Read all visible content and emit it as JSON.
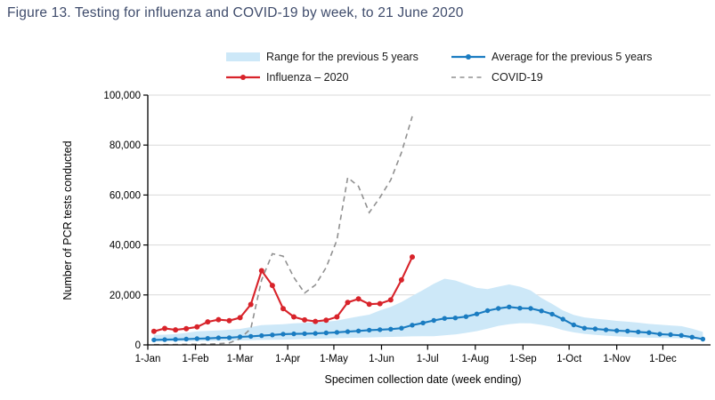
{
  "figure": {
    "title": "Figure 13. Testing for influenza and COVID-19 by week, to 21 June 2020"
  },
  "legend": {
    "range_label": "Range for the previous 5 years",
    "average_label": "Average for the previous 5 years",
    "influenza_label": "Influenza – 2020",
    "covid_label": "COVID-19"
  },
  "colors": {
    "title": "#3e4b6b",
    "range_band": "#cde8f8",
    "average_line": "#1a7cc1",
    "influenza_line": "#d8232a",
    "covid_line": "#909090",
    "gridline": "#d9d9d9",
    "axis": "#000000",
    "text": "#000000"
  },
  "chart_data": {
    "type": "line",
    "title": "Testing for influenza and COVID-19 by week, to 21 June 2020",
    "xlabel": "Specimen collection date (week ending)",
    "ylabel": "Number of PCR tests conducted",
    "ylim": [
      0,
      100000
    ],
    "ytick_values": [
      0,
      20000,
      40000,
      60000,
      80000,
      100000
    ],
    "ytick_labels": [
      "0",
      "20,000",
      "40,000",
      "60,000",
      "80,000",
      "100,000"
    ],
    "xtick_labels": [
      "1-Jan",
      "1-Feb",
      "1-Mar",
      "1-Apr",
      "1-May",
      "1-Jun",
      "1-Jul",
      "1-Aug",
      "1-Sep",
      "1-Oct",
      "1-Nov",
      "1-Dec"
    ],
    "grid": "horizontal",
    "legend_position": "top",
    "week_endings_2020": [
      "5-Jan",
      "12-Jan",
      "19-Jan",
      "26-Jan",
      "2-Feb",
      "9-Feb",
      "16-Feb",
      "23-Feb",
      "1-Mar",
      "8-Mar",
      "15-Mar",
      "22-Mar",
      "29-Mar",
      "5-Apr",
      "12-Apr",
      "19-Apr",
      "26-Apr",
      "3-May",
      "10-May",
      "17-May",
      "24-May",
      "31-May",
      "7-Jun",
      "14-Jun",
      "21-Jun"
    ],
    "series": [
      {
        "name": "Range for the previous 5 years",
        "type": "band",
        "upper": [
          4000,
          4100,
          4300,
          4800,
          5400,
          5600,
          5800,
          6100,
          6400,
          7100,
          7900,
          8100,
          8300,
          8600,
          8800,
          9100,
          9300,
          9700,
          10600,
          11400,
          12100,
          13800,
          15200,
          17200,
          19600,
          22000,
          24500,
          26500,
          25800,
          24300,
          22800,
          22300,
          23300,
          24200,
          23300,
          21800,
          18800,
          16400,
          13800,
          12000,
          11000,
          10500,
          10100,
          9600,
          9300,
          8900,
          8400,
          8100,
          7800,
          7500,
          6500,
          5200
        ],
        "lower": [
          1300,
          1350,
          1400,
          1450,
          1500,
          1550,
          1600,
          1700,
          1800,
          1900,
          2000,
          2050,
          2100,
          2200,
          2350,
          2500,
          2600,
          2700,
          2800,
          2900,
          3000,
          3100,
          3200,
          3300,
          3400,
          3450,
          3500,
          3800,
          4200,
          4800,
          5500,
          6500,
          7600,
          8300,
          8700,
          8600,
          8000,
          7200,
          5900,
          5000,
          4400,
          4000,
          3700,
          3400,
          3200,
          3000,
          2900,
          2800,
          2700,
          2600,
          2400,
          2200
        ]
      },
      {
        "name": "Average for the previous 5 years",
        "type": "line",
        "marker": "circle",
        "values": [
          2000,
          2100,
          2200,
          2300,
          2500,
          2600,
          2800,
          2900,
          3200,
          3400,
          3700,
          4000,
          4300,
          4400,
          4500,
          4600,
          4800,
          5000,
          5300,
          5600,
          5900,
          6100,
          6300,
          6700,
          7900,
          8800,
          9800,
          10600,
          10800,
          11300,
          12400,
          13700,
          14600,
          15200,
          14700,
          14600,
          13600,
          12300,
          10300,
          8000,
          6700,
          6400,
          6000,
          5700,
          5500,
          5200,
          4900,
          4300,
          4100,
          3800,
          3100,
          2300
        ]
      },
      {
        "name": "Influenza – 2020",
        "type": "line",
        "marker": "circle",
        "values": [
          5400,
          6600,
          6000,
          6500,
          7200,
          9200,
          10100,
          9700,
          10900,
          16200,
          29700,
          23800,
          14500,
          11200,
          10000,
          9400,
          9900,
          11200,
          17000,
          18400,
          16300,
          16500,
          18000,
          26000,
          35200
        ]
      },
      {
        "name": "COVID-19",
        "type": "line",
        "style": "dashed",
        "values": [
          100,
          100,
          150,
          200,
          250,
          300,
          500,
          800,
          2500,
          6500,
          26000,
          36500,
          35500,
          27000,
          20800,
          24000,
          31000,
          42000,
          67000,
          63500,
          53000,
          59000,
          66000,
          77000,
          91500
        ]
      }
    ]
  }
}
